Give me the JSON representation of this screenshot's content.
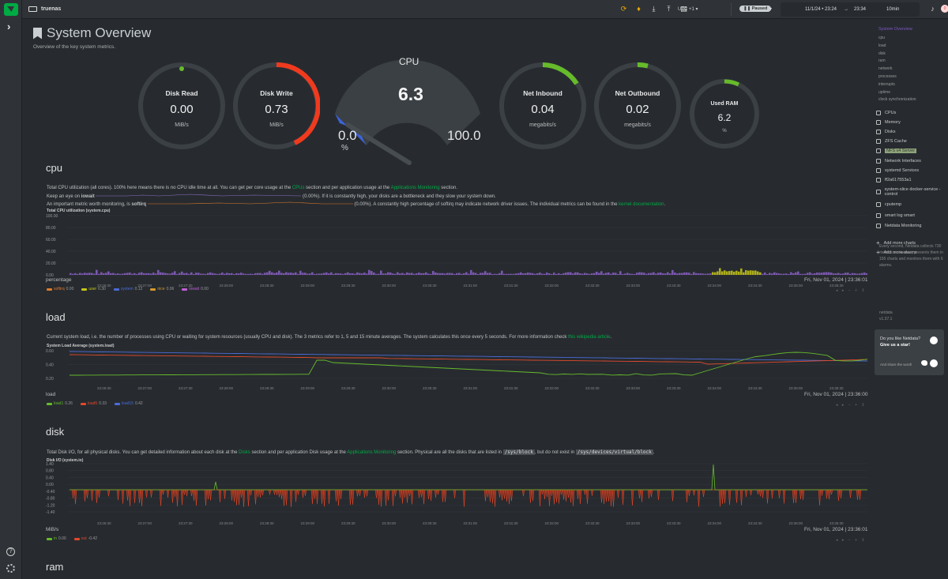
{
  "topbar": {
    "hostname": "truenas",
    "timezone": "UTC +1",
    "status": "Paused",
    "time_from": "11/1/24 • 23:24",
    "arrow": "→",
    "time_to": "23:34",
    "duration": "10min",
    "alert_crit": "0",
    "alert_warn": "0"
  },
  "page": {
    "title": "System Overview",
    "subtitle": "Overview of the key system metrics."
  },
  "gauges": {
    "disk_read": {
      "title": "Disk Read",
      "value": "0.00",
      "unit": "MiB/s"
    },
    "disk_write": {
      "title": "Disk Write",
      "value": "0.73",
      "unit": "MiB/s"
    },
    "cpu": {
      "title": "CPU",
      "value": "6.3",
      "min": "0.0",
      "max": "100.0",
      "unit": "%"
    },
    "net_inbound": {
      "title": "Net Inbound",
      "value": "0.04",
      "unit": "megabits/s"
    },
    "net_outbound": {
      "title": "Net Outbound",
      "value": "0.02",
      "unit": "megabits/s"
    },
    "used_ram": {
      "title": "Used RAM",
      "value": "6.2",
      "unit": "%"
    }
  },
  "cpu_section": {
    "heading": "cpu",
    "desc1_a": "Total CPU utilization (all cores). 100% here means there is no CPU idle time at all. You can get per core usage at the ",
    "desc1_link1": "CPUs",
    "desc1_b": " section and per application usage at the ",
    "desc1_link2": "Applications Monitoring",
    "desc1_c": " section.",
    "desc2_a": "Keep an eye on ",
    "desc2_bold": "iowait",
    "desc2_pct": "0.00%",
    "desc2_b": "). If it is constantly high, your disks are a bottleneck and they slow your system down.",
    "desc3_a": "An important metric worth monitoring, is ",
    "desc3_bold": "softirq",
    "desc3_pct": "0.00%",
    "desc3_b": "). A constantly high percentage of softirq may indicate network driver issues. The individual metrics can be found in the ",
    "desc3_link": "kernel documentation",
    "desc3_c": ".",
    "chart_title": "Total CPU utilization (system.cpu)",
    "y_ticks": [
      "100.00",
      "80.00",
      "60.00",
      "40.00",
      "20.00",
      "0.00"
    ],
    "ylabel": "percentage",
    "timestamp": "Fri, Nov 01, 2024 | 23:36:01",
    "legend": [
      {
        "name": "softirq",
        "value": "0.00",
        "color": "#e07b2a"
      },
      {
        "name": "user",
        "value": "6.30",
        "color": "#c5c617"
      },
      {
        "name": "system",
        "value": "0.12",
        "color": "#4b6bd6"
      },
      {
        "name": "nice",
        "value": "0.06",
        "color": "#d69a2a"
      },
      {
        "name": "iowait",
        "value": "0.00",
        "color": "#c05ed6"
      }
    ]
  },
  "load_section": {
    "heading": "load",
    "desc_a": "Current system load, i.e. the number of processes using CPU or waiting for system resources (usually CPU and disk). The 3 metrics refer to 1, 5 and 15 minute averages. The system calculates this once every 5 seconds. For more information check ",
    "desc_link": "this wikipedia article",
    "desc_b": ".",
    "chart_title": "System Load Average (system.load)",
    "y_ticks": [
      "0.60",
      "0.40",
      "0.20"
    ],
    "ylabel": "load",
    "timestamp": "Fri, Nov 01, 2024 | 23:36:00",
    "legend": [
      {
        "name": "load1",
        "value": "0.26",
        "color": "#66bb2a"
      },
      {
        "name": "load5",
        "value": "0.33",
        "color": "#e0492a"
      },
      {
        "name": "load15",
        "value": "0.42",
        "color": "#4b6bd6"
      }
    ]
  },
  "disk_section": {
    "heading": "disk",
    "desc_a": "Total Disk I/O, for all physical disks. You can get detailed information about each disk at the ",
    "desc_link1": "Disks",
    "desc_b": " section and per application Disk usage at the ",
    "desc_link2": "Applications Monitoring",
    "desc_c": " section. Physical are all the disks that are listed in ",
    "desc_code1": "/sys/block",
    "desc_d": ", but do not exist in ",
    "desc_code2": "/sys/devices/virtual/block",
    "desc_e": ".",
    "chart_title": "Disk I/O (system.io)",
    "y_ticks": [
      "1.40",
      "0.80",
      "0.40",
      "0.00",
      "-0.40",
      "-0.80",
      "-1.20",
      "-1.40"
    ],
    "ylabel": "MiB/s",
    "timestamp": "Fri, Nov 01, 2024 | 23:36:01",
    "legend": [
      {
        "name": "in",
        "value": "0.00",
        "color": "#66bb2a"
      },
      {
        "name": "out",
        "value": "-0.42",
        "color": "#e0492a"
      }
    ]
  },
  "ram_section": {
    "heading": "ram"
  },
  "x_ticks": [
    "23:26:30",
    "23:27:00",
    "23:27:30",
    "23:28:00",
    "23:28:30",
    "23:29:00",
    "23:29:30",
    "23:30:00",
    "23:30:30",
    "23:31:00",
    "23:31:30",
    "23:32:00",
    "23:32:30",
    "23:33:00",
    "23:33:30",
    "23:34:00",
    "23:34:30",
    "23:35:00",
    "23:35:30",
    "23:36:00"
  ],
  "sidebar": {
    "active": "System Overview",
    "subitems": [
      "cpu",
      "load",
      "disk",
      "ram",
      "network",
      "processes",
      "interrupts",
      "uptime",
      "clock synchronization"
    ],
    "menu": [
      "CPUs",
      "Memory",
      "Disks",
      "ZFS Cache",
      "NFS v4 Server",
      "Network Interfaces",
      "systemd Services",
      "ff2a617553a1",
      "system-slice docker-service - control",
      "cputemp",
      "smart log smart",
      "Netdata Monitoring"
    ],
    "add_charts": "Add more charts",
    "add_alarms": "Add more alarms",
    "info": "Every second, Netdata collects 730 metrics on truenas, presents them in 155 charts and monitors them with 6 alarms.",
    "brand": "netdata",
    "version": "v1.37.1",
    "star_q": "Do you like Netdata?",
    "star_cta": "Give us a star!",
    "share": "And share the word!"
  }
}
